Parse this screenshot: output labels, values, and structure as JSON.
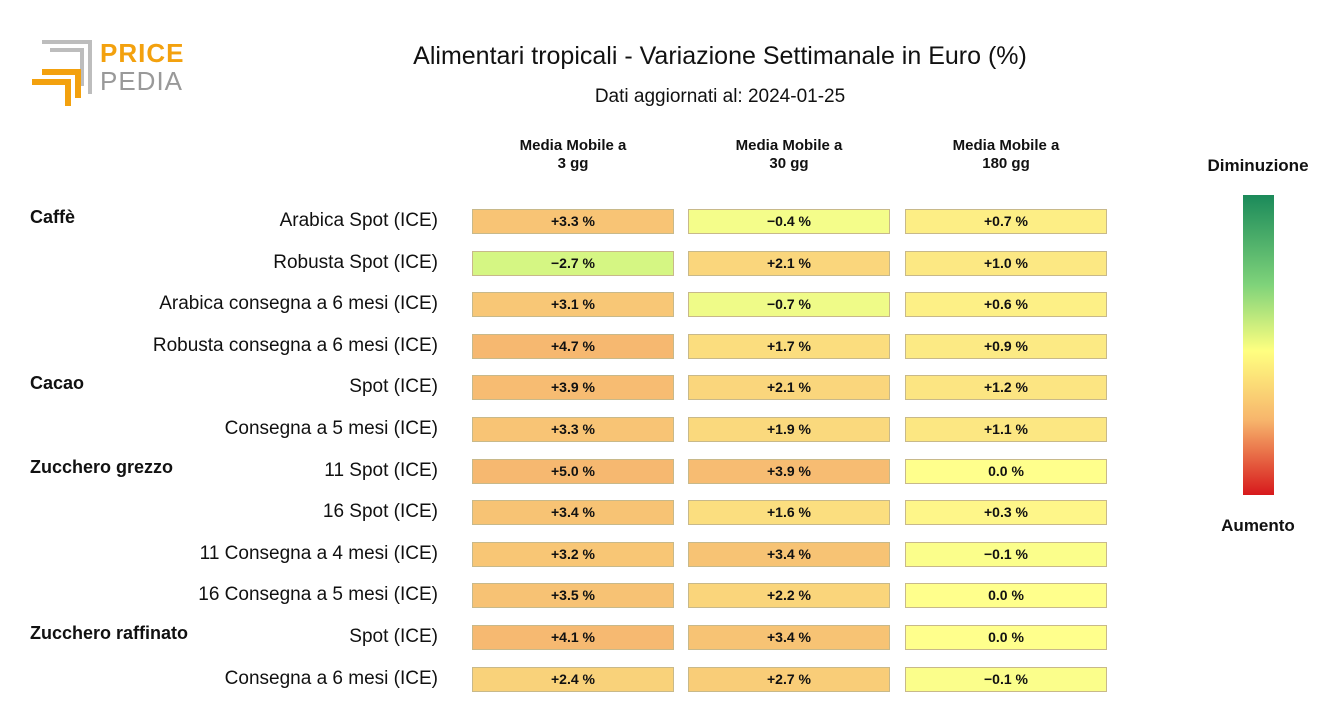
{
  "brand": {
    "line1": "PRICE",
    "line2": "PEDIA"
  },
  "chart_data": {
    "type": "table",
    "title": "Alimentari tropicali - Variazione Settimanale in Euro (%)",
    "subtitle": "Dati aggiornati al: 2024-01-25",
    "columns": [
      {
        "l1": "Media Mobile a",
        "l2": "3 gg"
      },
      {
        "l1": "Media Mobile a",
        "l2": "30 gg"
      },
      {
        "l1": "Media Mobile a",
        "l2": "180 gg"
      }
    ],
    "legend": {
      "top": "Diminuzione",
      "bottom": "Aumento"
    },
    "rows": [
      {
        "category": "Caffè",
        "label": "Arabica Spot (ICE)",
        "values": [
          3.3,
          -0.4,
          0.7
        ],
        "text": [
          "+3.3 %",
          "−0.4 %",
          "+0.7 %"
        ]
      },
      {
        "category": "",
        "label": "Robusta Spot (ICE)",
        "values": [
          -2.7,
          2.1,
          1.0
        ],
        "text": [
          "−2.7 %",
          "+2.1 %",
          "+1.0 %"
        ]
      },
      {
        "category": "",
        "label": "Arabica consegna a 6 mesi (ICE)",
        "values": [
          3.1,
          -0.7,
          0.6
        ],
        "text": [
          "+3.1 %",
          "−0.7 %",
          "+0.6 %"
        ]
      },
      {
        "category": "",
        "label": "Robusta consegna a 6 mesi (ICE)",
        "values": [
          4.7,
          1.7,
          0.9
        ],
        "text": [
          "+4.7 %",
          "+1.7 %",
          "+0.9 %"
        ]
      },
      {
        "category": "Cacao",
        "label": "Spot (ICE)",
        "values": [
          3.9,
          2.1,
          1.2
        ],
        "text": [
          "+3.9 %",
          "+2.1 %",
          "+1.2 %"
        ]
      },
      {
        "category": "",
        "label": "Consegna a 5 mesi (ICE)",
        "values": [
          3.3,
          1.9,
          1.1
        ],
        "text": [
          "+3.3 %",
          "+1.9 %",
          "+1.1 %"
        ]
      },
      {
        "category": "Zucchero grezzo",
        "label": "11 Spot (ICE)",
        "values": [
          5.0,
          3.9,
          0.0
        ],
        "text": [
          "+5.0 %",
          "+3.9 %",
          "0.0 %"
        ]
      },
      {
        "category": "",
        "label": "16 Spot (ICE)",
        "values": [
          3.4,
          1.6,
          0.3
        ],
        "text": [
          "+3.4 %",
          "+1.6 %",
          "+0.3 %"
        ]
      },
      {
        "category": "",
        "label": "11 Consegna a 4 mesi (ICE)",
        "values": [
          3.2,
          3.4,
          -0.1
        ],
        "text": [
          "+3.2 %",
          "+3.4 %",
          "−0.1 %"
        ]
      },
      {
        "category": "",
        "label": "16 Consegna a 5 mesi (ICE)",
        "values": [
          3.5,
          2.2,
          0.0
        ],
        "text": [
          "+3.5 %",
          "+2.2 %",
          "0.0 %"
        ]
      },
      {
        "category": "Zucchero raffinato",
        "label": "Spot (ICE)",
        "values": [
          4.1,
          3.4,
          0.0
        ],
        "text": [
          "+4.1 %",
          "+3.4 %",
          "0.0 %"
        ]
      },
      {
        "category": "",
        "label": "Consegna a 6 mesi (ICE)",
        "values": [
          2.4,
          2.7,
          -0.1
        ],
        "text": [
          "+2.4 %",
          "+2.7 %",
          "−0.1 %"
        ]
      }
    ]
  }
}
